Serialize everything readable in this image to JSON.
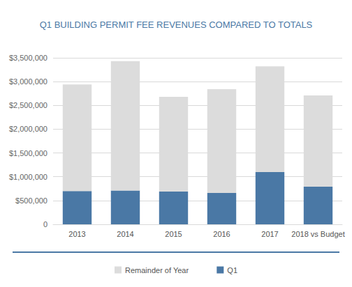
{
  "chart_data": {
    "type": "bar",
    "title": "Q1 BUILDING PERMIT FEE REVENUES COMPARED TO TOTALS",
    "categories": [
      "2013",
      "2014",
      "2015",
      "2016",
      "2017",
      "2018 vs Budget"
    ],
    "series": [
      {
        "name": "Q1",
        "color": "#4a78a5",
        "values": [
          700000,
          710000,
          690000,
          660000,
          1100000,
          790000
        ]
      },
      {
        "name": "Remainder of Year",
        "color": "#dcdcdc",
        "values": [
          2240000,
          2720000,
          1990000,
          2180000,
          2220000,
          1920000
        ]
      }
    ],
    "ylim": [
      0,
      3500000
    ],
    "yticks": [
      0,
      {
        "value": 500000,
        "label": "$500,000"
      },
      {
        "value": 1000000,
        "label": "$1,000,000"
      },
      {
        "value": 1500000,
        "label": "$1,500,000"
      },
      {
        "value": 2000000,
        "label": "$2,000,000"
      },
      {
        "value": 2500000,
        "label": "$2,500,000"
      },
      {
        "value": 3000000,
        "label": "$3,000,000"
      },
      {
        "value": 3500000,
        "label": "$3,500,000"
      }
    ],
    "stacked": true,
    "grid": true,
    "legend": "bottom"
  }
}
